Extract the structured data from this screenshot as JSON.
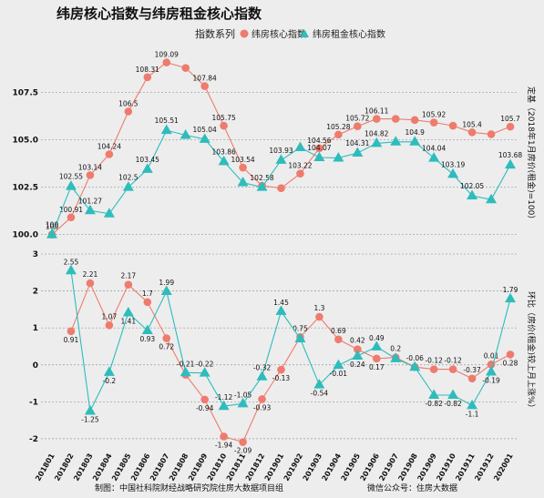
{
  "title": "纬房核心指数与纬房租金核心指数",
  "legend": {
    "title": "指数系列",
    "position": "top-center"
  },
  "colors": {
    "core": "#ee7b6e",
    "rent": "#2ebcbc",
    "background": "#ededed",
    "grid": "#999999"
  },
  "footer": {
    "left": "制图：中国社科院财经战略研究院住房大数据项目组",
    "right": "微信公众号：住房大数据"
  },
  "chart_data": [
    {
      "type": "line",
      "categories": [
        "201801",
        "201802",
        "201803",
        "201804",
        "201805",
        "201806",
        "201807",
        "201808",
        "201809",
        "201810",
        "201811",
        "201812",
        "201901",
        "201902",
        "201903",
        "201904",
        "201905",
        "201906",
        "201907",
        "201908",
        "201909",
        "201910",
        "201911",
        "201912",
        "202001"
      ],
      "ylabel": "定基（2018年1月房价(租金)=100）",
      "ylim": [
        99.6,
        109.6
      ],
      "yticks": [
        100.0,
        102.5,
        105.0,
        107.5
      ],
      "ytick_labels": [
        "100.0",
        "102.5",
        "105.0",
        "107.5"
      ],
      "grid": true,
      "series": [
        {
          "name": "纬房核心指数",
          "marker": "circle",
          "values": [
            100,
            100.91,
            103.14,
            104.24,
            106.5,
            108.31,
            109.09,
            108.8,
            107.84,
            105.75,
            103.54,
            102.58,
            102.45,
            103.22,
            104.56,
            105.28,
            105.72,
            106.11,
            106.11,
            106.05,
            105.92,
            105.75,
            105.4,
            105.3,
            105.7
          ],
          "labels": [
            "100",
            "100.91",
            "103.14",
            "104.24",
            "106.5",
            "108.31",
            "109.09",
            "",
            "107.84",
            "105.75",
            "103.54",
            "102.58",
            "",
            "103.22",
            "104.56",
            "105.28",
            "105.72",
            "106.11",
            "",
            "",
            "105.92",
            "",
            "105.4",
            "",
            "105.7"
          ]
        },
        {
          "name": "纬房租金核心指数",
          "marker": "triangle",
          "values": [
            100,
            102.55,
            101.27,
            101.1,
            102.5,
            103.45,
            105.51,
            105.25,
            105.04,
            103.86,
            102.75,
            102.5,
            103.93,
            104.6,
            104.07,
            104.05,
            104.31,
            104.82,
            104.9,
            104.9,
            104.04,
            103.19,
            102.05,
            101.85,
            103.68
          ],
          "labels": [
            "100",
            "102.55",
            "101.27",
            "",
            "102.5",
            "103.45",
            "105.51",
            "",
            "105.04",
            "103.86",
            "",
            "",
            "103.93",
            "",
            "104.07",
            "",
            "104.31",
            "104.82",
            "",
            "104.9",
            "104.04",
            "103.19",
            "102.05",
            "",
            "103.68"
          ]
        }
      ]
    },
    {
      "type": "line",
      "categories": [
        "201801",
        "201802",
        "201803",
        "201804",
        "201805",
        "201806",
        "201807",
        "201808",
        "201809",
        "201810",
        "201811",
        "201812",
        "201901",
        "201902",
        "201903",
        "201904",
        "201905",
        "201906",
        "201907",
        "201908",
        "201909",
        "201910",
        "201911",
        "201912",
        "202001"
      ],
      "ylabel": "环比（房价(租金)较上月上涨%）",
      "ylim": [
        -2.2,
        3.1
      ],
      "yticks": [
        -2,
        -1,
        0,
        1,
        2,
        3
      ],
      "ytick_labels": [
        "-2",
        "-1",
        "0",
        "1",
        "2",
        "3"
      ],
      "grid": true,
      "series": [
        {
          "name": "纬房核心指数",
          "marker": "circle",
          "values": [
            null,
            0.91,
            2.21,
            1.07,
            2.17,
            1.7,
            0.72,
            -0.27,
            -0.94,
            -1.94,
            -2.09,
            -0.93,
            -0.13,
            0.75,
            1.3,
            0.69,
            0.42,
            0.17,
            0.2,
            -0.06,
            -0.12,
            -0.12,
            -0.37,
            0.01,
            0.28
          ],
          "labels": [
            "",
            "0.91",
            "2.21",
            "1.07",
            "2.17",
            "1.7",
            "0.72",
            "",
            "-0.94",
            "-1.94",
            "-2.09",
            "-0.93",
            "-0.13",
            "0.75",
            "1.3",
            "0.69",
            "0.42",
            "0.17",
            "0.2",
            "-0.06",
            "-0.12",
            "-0.12",
            "-0.37",
            "0.01",
            "0.28"
          ]
        },
        {
          "name": "纬房租金核心指数",
          "marker": "triangle",
          "values": [
            null,
            2.55,
            -1.25,
            -0.2,
            1.41,
            0.93,
            1.99,
            -0.21,
            -0.22,
            -1.12,
            -1.05,
            -0.32,
            1.45,
            0.71,
            -0.54,
            -0.01,
            0.24,
            0.49,
            0.17,
            -0.06,
            -0.82,
            -0.82,
            -1.1,
            -0.19,
            1.79
          ],
          "labels": [
            "",
            "2.55",
            "-1.25",
            "-0.2",
            "1.41",
            "0.93",
            "1.99",
            "-0.21",
            "-0.22",
            "-1.12",
            "-1.05",
            "-0.32",
            "1.45",
            "",
            "-0.54",
            "-0.01",
            "0.24",
            "0.49",
            "",
            "",
            "-0.82",
            "-0.82",
            "-1.1",
            "-0.19",
            "1.79"
          ]
        }
      ]
    }
  ]
}
